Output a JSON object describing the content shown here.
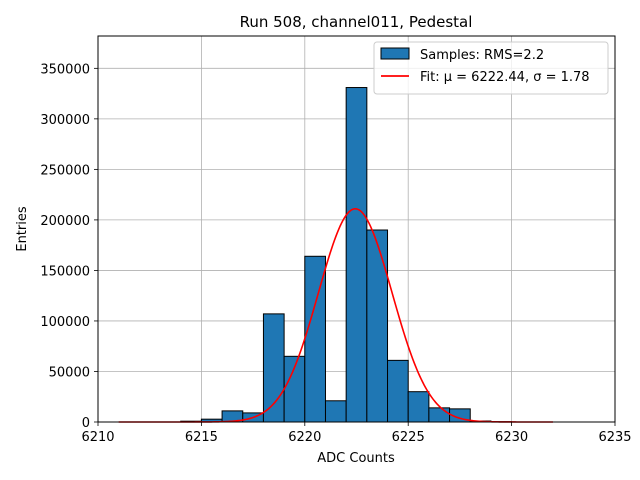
{
  "chart_data": {
    "type": "bar",
    "title": "Run 508, channel011, Pedestal",
    "xlabel": "ADC Counts",
    "ylabel": "Entries",
    "xlim": [
      6210,
      6235
    ],
    "ylim": [
      0,
      382000
    ],
    "xticks": [
      6210,
      6215,
      6220,
      6225,
      6230,
      6235
    ],
    "yticks": [
      0,
      50000,
      100000,
      150000,
      200000,
      250000,
      300000,
      350000
    ],
    "grid": true,
    "legend_position": "top-right",
    "bin_width": 1,
    "bar_color": "#1f77b4",
    "fit_color": "#ff0000",
    "bins": [
      {
        "left": 6214,
        "value": 800
      },
      {
        "left": 6215,
        "value": 2800
      },
      {
        "left": 6216,
        "value": 11000
      },
      {
        "left": 6217,
        "value": 9000
      },
      {
        "left": 6218,
        "value": 107000
      },
      {
        "left": 6219,
        "value": 65000
      },
      {
        "left": 6220,
        "value": 164000
      },
      {
        "left": 6221,
        "value": 21000
      },
      {
        "left": 6222,
        "value": 331000
      },
      {
        "left": 6223,
        "value": 190000
      },
      {
        "left": 6224,
        "value": 61000
      },
      {
        "left": 6225,
        "value": 30000
      },
      {
        "left": 6226,
        "value": 14000
      },
      {
        "left": 6227,
        "value": 13000
      },
      {
        "left": 6228,
        "value": 1000
      },
      {
        "left": 6229,
        "value": 300
      }
    ],
    "fit": {
      "mu": 6222.44,
      "sigma": 1.78,
      "amplitude": 211000,
      "x_range": [
        6211,
        6232
      ]
    },
    "legend": [
      {
        "label": "Samples: RMS=2.2",
        "kind": "patch"
      },
      {
        "label": "Fit: μ = 6222.44, σ = 1.78",
        "kind": "line"
      }
    ]
  }
}
